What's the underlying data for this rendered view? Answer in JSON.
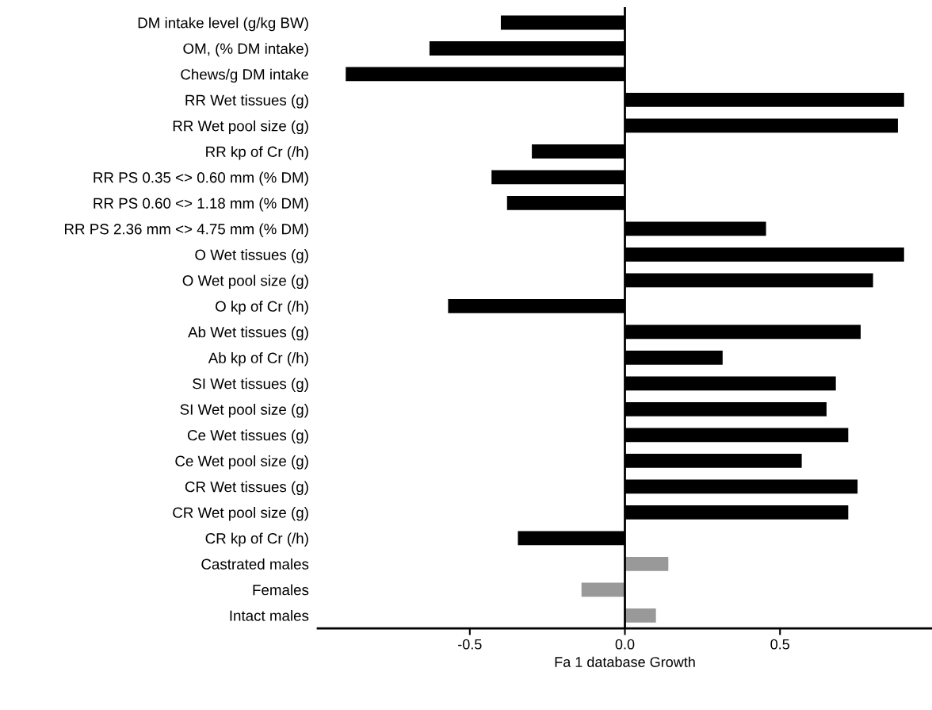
{
  "chart_data": {
    "type": "bar",
    "orientation": "horizontal",
    "xlabel": "Fa 1 database Growth",
    "categories": [
      "DM intake level (g/kg BW)",
      "OM, (% DM intake)",
      "Chews/g DM intake",
      "RR Wet tissues (g)",
      "RR Wet pool size (g)",
      "RR kp of Cr (/h)",
      "RR PS 0.35 <> 0.60 mm (% DM)",
      "RR PS 0.60 <> 1.18 mm (% DM)",
      "RR PS 2.36 mm <> 4.75 mm (% DM)",
      "O Wet tissues (g)",
      "O Wet pool size (g)",
      "O kp of Cr (/h)",
      "Ab Wet tissues (g)",
      "Ab kp of Cr (/h)",
      "SI Wet tissues (g)",
      "SI Wet pool size (g)",
      "Ce Wet tissues (g)",
      "Ce Wet pool size (g)",
      "CR Wet tissues (g)",
      "CR Wet pool size (g)",
      "CR kp of Cr (/h)",
      "Castrated males",
      "Females",
      "Intact males"
    ],
    "values": [
      -0.4,
      -0.63,
      -0.9,
      0.9,
      0.88,
      -0.3,
      -0.43,
      -0.38,
      0.455,
      0.9,
      0.8,
      -0.57,
      0.76,
      0.315,
      0.68,
      0.65,
      0.72,
      0.57,
      0.75,
      0.72,
      -0.345,
      0.14,
      -0.14,
      0.1
    ],
    "colors": [
      "#000000",
      "#000000",
      "#000000",
      "#000000",
      "#000000",
      "#000000",
      "#000000",
      "#000000",
      "#000000",
      "#000000",
      "#000000",
      "#000000",
      "#000000",
      "#000000",
      "#000000",
      "#000000",
      "#000000",
      "#000000",
      "#000000",
      "#000000",
      "#000000",
      "#999999",
      "#999999",
      "#999999"
    ],
    "xlim": [
      -0.99,
      0.99
    ],
    "xticks": [
      {
        "value": -0.5,
        "label": "-0.5"
      },
      {
        "value": 0,
        "label": "0.0"
      },
      {
        "value": 0.5,
        "label": "0.5"
      }
    ],
    "ref_lines": [
      {
        "axis": "x",
        "value": 0,
        "color": "#000000"
      }
    ],
    "grid": false
  }
}
